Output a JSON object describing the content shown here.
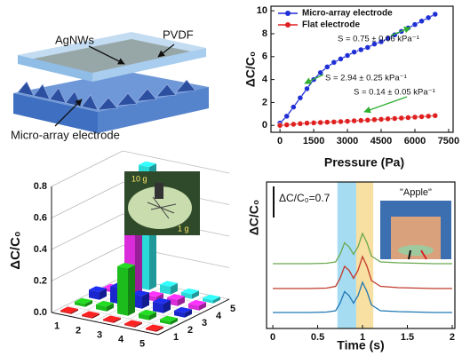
{
  "diagram": {
    "labels": [
      "AgNWs",
      "PVDF",
      "Micro-array electrode"
    ]
  },
  "chart_data": [
    {
      "type": "line",
      "xlabel": "Pressure (Pa)",
      "ylabel": "ΔC/C₀",
      "x": [
        0,
        300,
        600,
        900,
        1200,
        1500,
        1800,
        2100,
        2400,
        2700,
        3000,
        3300,
        3600,
        3900,
        4200,
        4500,
        4800,
        5100,
        5400,
        5700,
        6000,
        6300,
        6600,
        6900
      ],
      "series": [
        {
          "name": "Micro-array electrode",
          "color": "#1f2fd6",
          "values": [
            0.2,
            0.8,
            1.6,
            2.4,
            3.2,
            4.0,
            4.6,
            5.1,
            5.5,
            5.8,
            6.1,
            6.4,
            6.6,
            6.8,
            7.1,
            7.3,
            7.6,
            7.9,
            8.2,
            8.5,
            8.8,
            9.1,
            9.4,
            9.7
          ]
        },
        {
          "name": "Flat electrode",
          "color": "#e02020",
          "values": [
            0.0,
            0.05,
            0.1,
            0.15,
            0.2,
            0.22,
            0.25,
            0.28,
            0.3,
            0.33,
            0.36,
            0.4,
            0.43,
            0.46,
            0.5,
            0.53,
            0.57,
            0.6,
            0.64,
            0.68,
            0.72,
            0.76,
            0.8,
            0.85
          ]
        }
      ],
      "markers": "circle",
      "legend": "upper left",
      "xlim": [
        -400,
        7700
      ],
      "xticks": [
        0,
        1500,
        3000,
        4500,
        6000,
        7500
      ],
      "ylim": [
        -0.6,
        10.4
      ],
      "yticks": [
        0,
        2,
        4,
        6,
        8,
        10
      ],
      "annotations": [
        "S = 0.75 ± 0.06 kPa⁻¹",
        "S = 2.94 ± 0.25 kPa⁻¹",
        "S = 0.14 ± 0.05 kPa⁻¹"
      ],
      "annotation_color": "#2fae2f"
    },
    {
      "type": "bar3d",
      "zlabel": "ΔC/C₀",
      "categories": [
        1,
        2,
        3,
        4,
        5
      ],
      "rows": [
        1,
        2,
        3,
        4,
        5
      ],
      "series": [
        {
          "color": "#ff2020",
          "values": [
            0.01,
            0.01,
            0.01,
            0.01,
            0.01
          ]
        },
        {
          "color": "#22dd22",
          "values": [
            0.02,
            0.03,
            0.3,
            0.03,
            0.02
          ]
        },
        {
          "color": "#1e2ef0",
          "values": [
            0.05,
            0.1,
            0.08,
            0.06,
            0.03
          ]
        },
        {
          "color": "#ff33ff",
          "values": [
            0.02,
            0.55,
            0.03,
            0.04,
            0.03
          ]
        },
        {
          "color": "#33ffff",
          "values": [
            0.03,
            0.78,
            0.05,
            0.03,
            0.02
          ]
        }
      ],
      "zlim": [
        0,
        0.8
      ],
      "zticks": [
        {
          "value": 0,
          "label": "0.0"
        },
        {
          "value": 0.2,
          "label": "0.2"
        },
        {
          "value": 0.4,
          "label": "0.4"
        },
        {
          "value": 0.6,
          "label": "0.6"
        },
        {
          "value": 0.8,
          "label": "0.8"
        }
      ],
      "annotations": [
        "10 g",
        "1 g"
      ]
    },
    {
      "type": "line",
      "xlabel": "Time (s)",
      "ylabel": "ΔC/C₀",
      "x": [
        0,
        0.2,
        0.4,
        0.6,
        0.7,
        0.75,
        0.8,
        0.85,
        0.9,
        0.95,
        1.0,
        1.05,
        1.1,
        1.2,
        1.4,
        1.6,
        1.8,
        2.0
      ],
      "series": [
        {
          "color": "#1f77b4",
          "values": [
            0.36,
            0.36,
            0.36,
            0.37,
            0.4,
            0.57,
            0.83,
            0.74,
            0.57,
            0.74,
            1.04,
            0.83,
            0.53,
            0.4,
            0.38,
            0.37,
            0.36,
            0.36
          ]
        },
        {
          "color": "#c0392b",
          "values": [
            0.9,
            0.9,
            0.9,
            0.91,
            0.95,
            1.13,
            1.4,
            1.31,
            1.13,
            1.31,
            1.62,
            1.4,
            1.08,
            0.95,
            0.92,
            0.91,
            0.9,
            0.9
          ]
        },
        {
          "color": "#6aa84f",
          "values": [
            1.46,
            1.46,
            1.46,
            1.47,
            1.5,
            1.67,
            1.93,
            1.84,
            1.67,
            1.84,
            2.14,
            1.93,
            1.63,
            1.5,
            1.48,
            1.47,
            1.46,
            1.46
          ]
        }
      ],
      "bands": [
        {
          "range": [
            0.72,
            0.93
          ],
          "color": "#a6dcf2"
        },
        {
          "range": [
            0.93,
            1.12
          ],
          "color": "#f8dfa2"
        }
      ],
      "scalebar": {
        "value": 0.7,
        "label": "ΔC/C₀=0.7"
      },
      "xlim": [
        -0.07,
        2.03
      ],
      "xticks": [
        0,
        0.5,
        1,
        1.5,
        2
      ],
      "ylim": [
        0,
        3.3
      ],
      "annotations": [
        "\"Apple\""
      ]
    }
  ]
}
